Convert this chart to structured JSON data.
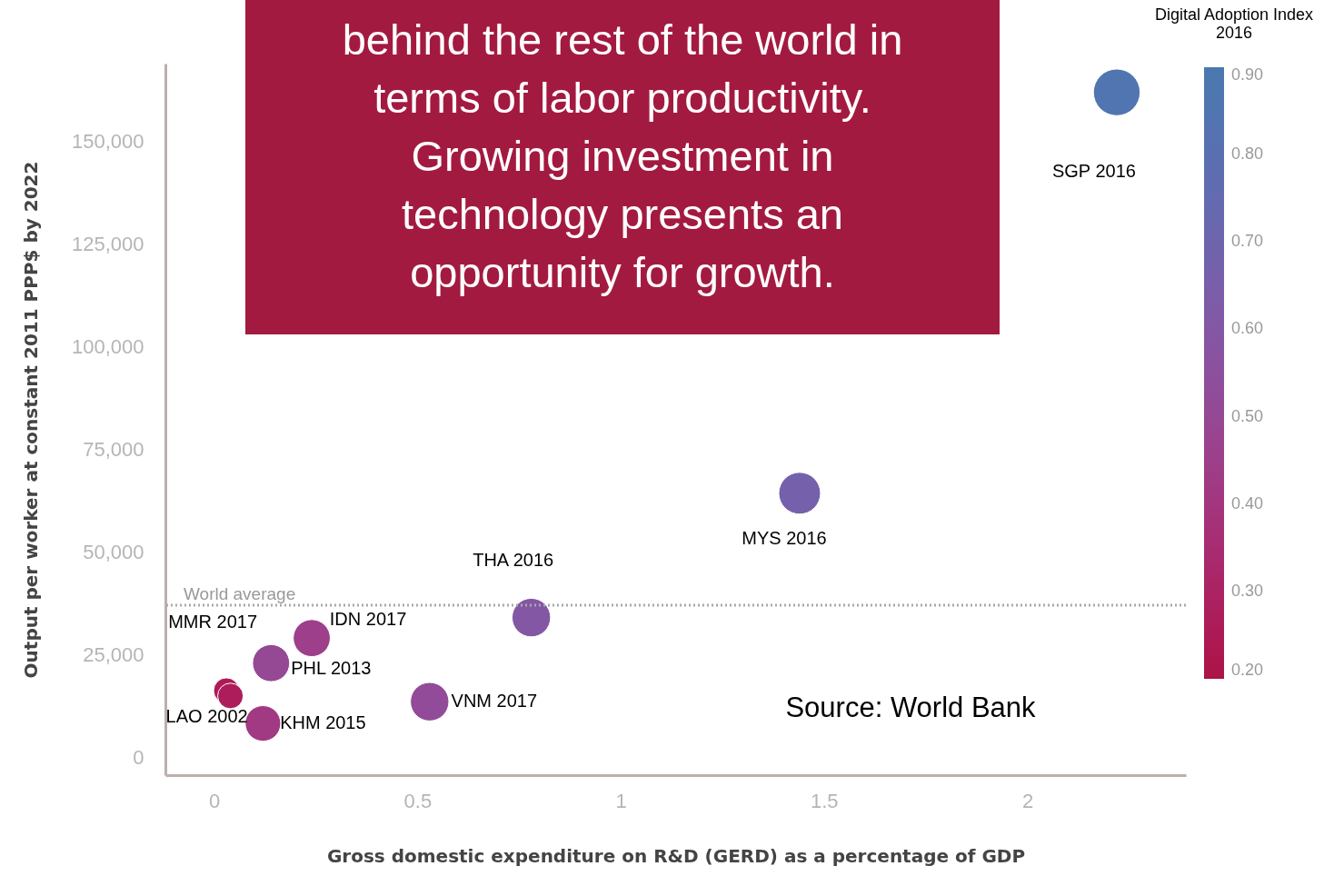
{
  "chart_data": {
    "type": "bubble",
    "title": "behind the rest of the world in terms of labor productivity. Growing investment in technology presents an opportunity for growth.",
    "xlabel": "Gross domestic expenditure on R&D (GERD) as a percentage of GDP",
    "ylabel": "Output per worker at constant 2011 PPP$ by 2022",
    "clabel": "Digital Adoption Index 2016",
    "x": [
      2.22,
      1.44,
      0.78,
      0.53,
      0.24,
      0.14,
      0.12,
      0.03,
      0.04
    ],
    "values": [
      162000,
      64300,
      34000,
      13500,
      29000,
      22900,
      8200,
      16200,
      14900
    ],
    "sizes": [
      1,
      0.8,
      0.68,
      0.68,
      0.63,
      0.63,
      0.58,
      0.3,
      0.3
    ],
    "cvalues": [
      0.85,
      0.67,
      0.6,
      0.52,
      0.45,
      0.5,
      0.42,
      0.25,
      0.27
    ],
    "clim": [
      0.2,
      0.9
    ],
    "cticks": [
      {
        "value": 0.2,
        "label": "0.20"
      },
      {
        "value": 0.3,
        "label": "0.30"
      },
      {
        "value": 0.4,
        "label": "0.40"
      },
      {
        "value": 0.5,
        "label": "0.50"
      },
      {
        "value": 0.6,
        "label": "0.60"
      },
      {
        "value": 0.7,
        "label": "0.70"
      },
      {
        "value": 0.8,
        "label": "0.80"
      },
      {
        "value": 0.9,
        "label": "0.90"
      }
    ],
    "xlim": [
      -0.12,
      2.39
    ],
    "xticks": [
      0,
      0.5,
      1,
      1.5,
      2
    ],
    "ylim": [
      -4400,
      169000
    ],
    "yticks": [
      0,
      {
        "value": 25000,
        "label": "25,000"
      },
      {
        "value": 50000,
        "label": "50,000"
      },
      {
        "value": 75000,
        "label": "75,000"
      },
      {
        "value": 100000,
        "label": "100,000"
      },
      {
        "value": 125000,
        "label": "125,000"
      },
      {
        "value": 150000,
        "label": "150,000"
      }
    ],
    "ref_lines": [
      {
        "axis": "y",
        "value": 37000,
        "label": "World average",
        "color": "#aaaaaa",
        "line_style": "dotted"
      }
    ],
    "annotations": [
      "SGP 2016",
      "MYS 2016",
      "THA 2016",
      "VNM 2017",
      "IDN 2017",
      "PHL 2013",
      "KHM 2015",
      "MMR 2017",
      "LAO 2002",
      "Source: World Bank"
    ],
    "grid": false
  }
}
